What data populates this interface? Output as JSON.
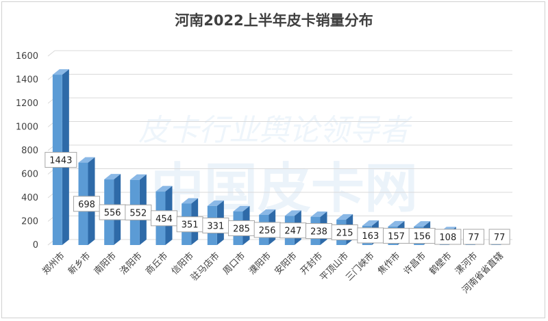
{
  "chart_data": {
    "type": "bar",
    "title": "河南2022上半年皮卡销量分布",
    "xlabel": "",
    "ylabel": "",
    "ylim": [
      0,
      1600
    ],
    "yticks": [
      0,
      200,
      400,
      600,
      800,
      1000,
      1200,
      1400,
      1600
    ],
    "grid": true,
    "legend": "none",
    "categories": [
      "郑州市",
      "新乡市",
      "南阳市",
      "洛阳市",
      "商丘市",
      "信阳市",
      "驻马店市",
      "周口市",
      "濮阳市",
      "安阳市",
      "开封市",
      "平顶山市",
      "三门峡市",
      "焦作市",
      "许昌市",
      "鹤壁市",
      "漯河市",
      "河南省省直辖"
    ],
    "values": [
      1443,
      698,
      556,
      552,
      454,
      351,
      331,
      285,
      256,
      247,
      238,
      215,
      163,
      157,
      156,
      108,
      77,
      77
    ],
    "colors": {
      "bar_front": "#5b9bd5",
      "bar_side": "#2e6aa8",
      "bar_top": "#8ab8e6",
      "grid": "#d9d9d9"
    }
  },
  "watermark": {
    "line1": "皮卡行业舆论领导者",
    "line2": "中国皮卡网"
  }
}
